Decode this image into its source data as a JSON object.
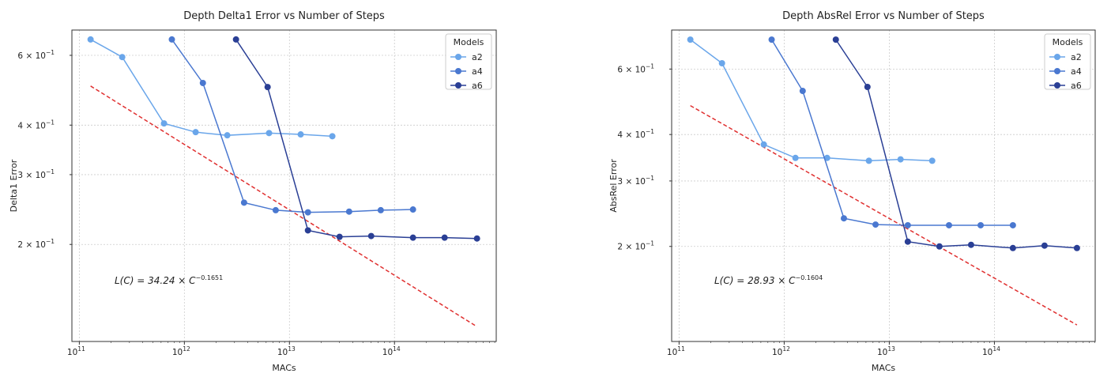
{
  "chart_data": [
    {
      "type": "line",
      "title": "Depth Delta1 Error vs Number of Steps",
      "xlabel": "MACs",
      "ylabel": "Delta1 Error",
      "xscale": "log",
      "yscale": "log",
      "xlim": [
        85000000000.0,
        930000000000000.0
      ],
      "ylim": [
        0.1138,
        0.695
      ],
      "grid": true,
      "legend_title": "Models",
      "legend_position": "top-right",
      "xticks": [
        {
          "value": 100000000000.0,
          "base": "10",
          "exp": "11"
        },
        {
          "value": 1000000000000.0,
          "base": "10",
          "exp": "12"
        },
        {
          "value": 10000000000000.0,
          "base": "10",
          "exp": "13"
        },
        {
          "value": 100000000000000.0,
          "base": "10",
          "exp": "14"
        }
      ],
      "yticks": [
        {
          "value": 0.2,
          "label": "2 × 10",
          "exp": "−1"
        },
        {
          "value": 0.3,
          "label": "3 × 10",
          "exp": "−1"
        },
        {
          "value": 0.4,
          "label": "4 × 10",
          "exp": "−1"
        },
        {
          "value": 0.6,
          "label": "6 × 10",
          "exp": "−1"
        }
      ],
      "series": [
        {
          "name": "a2",
          "color": "#6aa6ea",
          "x": [
            128000000000.0,
            256000000000.0,
            640000000000.0,
            1280000000000.0,
            2560000000000.0,
            6400000000000.0,
            12800000000000.0,
            25600000000000.0
          ],
          "y": [
            0.658,
            0.594,
            0.404,
            0.384,
            0.377,
            0.382,
            0.379,
            0.375
          ]
        },
        {
          "name": "a4",
          "color": "#4a78d0",
          "x": [
            760000000000.0,
            1500000000000.0,
            3700000000000.0,
            7400000000000.0,
            15000000000000.0,
            37000000000000.0,
            74000000000000.0,
            150000000000000.0
          ],
          "y": [
            0.658,
            0.511,
            0.255,
            0.244,
            0.241,
            0.242,
            0.244,
            0.245
          ]
        },
        {
          "name": "a6",
          "color": "#2a3f95",
          "x": [
            3100000000000.0,
            6200000000000.0,
            15000000000000.0,
            30000000000000.0,
            60000000000000.0,
            150000000000000.0,
            300000000000000.0,
            610000000000000.0
          ],
          "y": [
            0.658,
            0.499,
            0.217,
            0.209,
            0.21,
            0.208,
            0.208,
            0.207
          ]
        }
      ],
      "fit": {
        "a": 34.24,
        "b": -0.1651,
        "x_range": [
          128000000000.0,
          610000000000000.0
        ],
        "color": "#e03030",
        "label": "L(C) = 34.24 × C",
        "label_exp": "−0.1651"
      }
    },
    {
      "type": "line",
      "title": "Depth AbsRel Error vs Number of Steps",
      "xlabel": "MACs",
      "ylabel": "AbsRel Error",
      "xscale": "log",
      "yscale": "log",
      "xlim": [
        85000000000.0,
        910000000000000.0
      ],
      "ylim": [
        0.111,
        0.764
      ],
      "grid": true,
      "legend_title": "Models",
      "legend_position": "top-right",
      "xticks": [
        {
          "value": 100000000000.0,
          "base": "10",
          "exp": "11"
        },
        {
          "value": 1000000000000.0,
          "base": "10",
          "exp": "12"
        },
        {
          "value": 10000000000000.0,
          "base": "10",
          "exp": "13"
        },
        {
          "value": 100000000000000.0,
          "base": "10",
          "exp": "14"
        }
      ],
      "yticks": [
        {
          "value": 0.2,
          "label": "2 × 10",
          "exp": "−1"
        },
        {
          "value": 0.3,
          "label": "3 × 10",
          "exp": "−1"
        },
        {
          "value": 0.4,
          "label": "4 × 10",
          "exp": "−1"
        },
        {
          "value": 0.6,
          "label": "6 × 10",
          "exp": "−1"
        }
      ],
      "series": [
        {
          "name": "a2",
          "color": "#6aa6ea",
          "x": [
            128000000000.0,
            256000000000.0,
            640000000000.0,
            1280000000000.0,
            2560000000000.0,
            6400000000000.0,
            12800000000000.0,
            25600000000000.0
          ],
          "y": [
            0.72,
            0.622,
            0.376,
            0.346,
            0.346,
            0.34,
            0.343,
            0.34
          ]
        },
        {
          "name": "a4",
          "color": "#4a78d0",
          "x": [
            760000000000.0,
            1500000000000.0,
            3700000000000.0,
            7400000000000.0,
            15000000000000.0,
            37000000000000.0,
            74000000000000.0,
            150000000000000.0
          ],
          "y": [
            0.72,
            0.524,
            0.238,
            0.229,
            0.228,
            0.228,
            0.228,
            0.228
          ]
        },
        {
          "name": "a6",
          "color": "#2a3f95",
          "x": [
            3100000000000.0,
            6200000000000.0,
            15000000000000.0,
            30000000000000.0,
            60000000000000.0,
            150000000000000.0,
            300000000000000.0,
            610000000000000.0
          ],
          "y": [
            0.72,
            0.537,
            0.206,
            0.2,
            0.202,
            0.198,
            0.201,
            0.198
          ]
        }
      ],
      "fit": {
        "a": 28.93,
        "b": -0.1604,
        "x_range": [
          128000000000.0,
          610000000000000.0
        ],
        "color": "#e03030",
        "label": "L(C) = 28.93 × C",
        "label_exp": "−0.1604"
      }
    }
  ]
}
